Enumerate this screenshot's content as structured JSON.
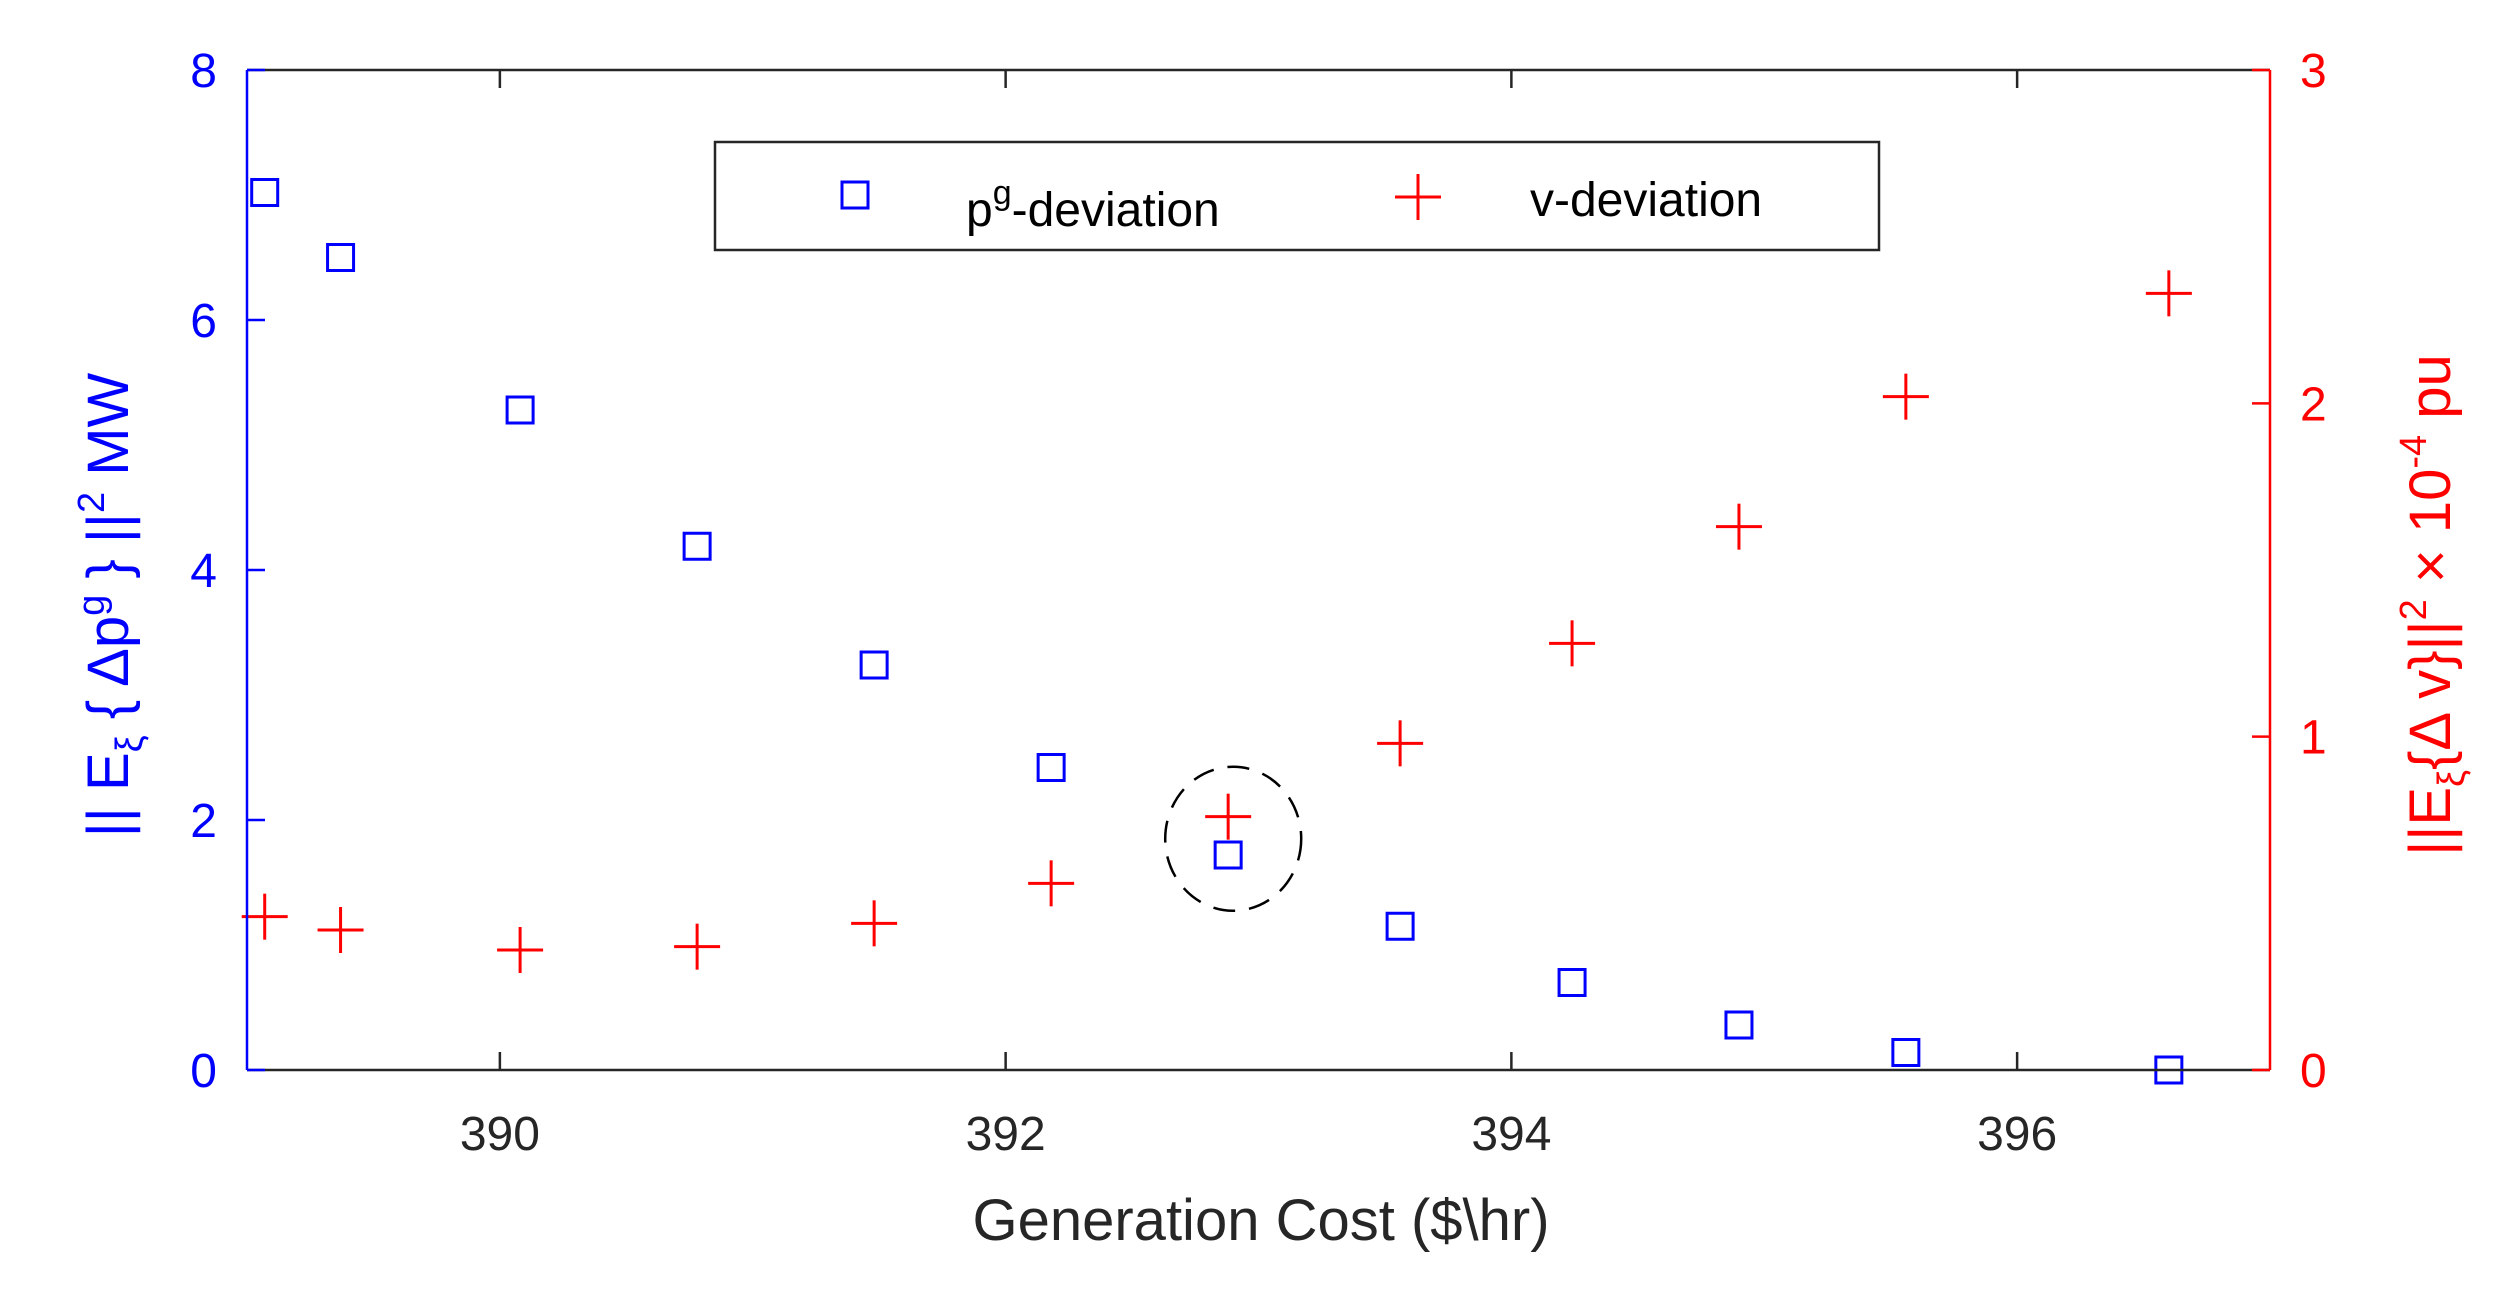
{
  "chart_data": {
    "type": "scatter",
    "title": "",
    "xlabel": "Generation Cost ($\\hr)",
    "ylabel_left": {
      "prefix": "|| E",
      "sub": "ξ",
      "mid": " { Δp",
      "sup1": "g",
      "mid2": " } ||",
      "sup2": "2",
      "suffix": "  MW"
    },
    "ylabel_right": {
      "prefix": "||E",
      "sub": "ξ",
      "mid": "{Δ v}||",
      "sup1": "2",
      "mid2": " × 10",
      "sup2": "-4",
      "suffix": " pu"
    },
    "xlim": [
      389,
      397
    ],
    "ylim_left": [
      0,
      8
    ],
    "ylim_right": [
      0,
      3
    ],
    "xticks": [
      390,
      392,
      394,
      396
    ],
    "yticks_left": [
      0,
      2,
      4,
      6,
      8
    ],
    "yticks_right": [
      0,
      1,
      2,
      3
    ],
    "colors": {
      "left": "#0000ff",
      "right": "#ff0000",
      "axis": "#262626"
    },
    "series": [
      {
        "name": "p^g-deviation",
        "axis": "left",
        "marker": "square",
        "color": "#0000ff",
        "x": [
          389.07,
          389.37,
          390.08,
          390.78,
          391.48,
          392.18,
          392.88,
          393.56,
          394.24,
          394.9,
          395.56,
          396.6
        ],
        "y": [
          7.02,
          6.5,
          5.28,
          4.19,
          3.24,
          2.42,
          1.72,
          1.15,
          0.7,
          0.36,
          0.14,
          0.0
        ]
      },
      {
        "name": "v-deviation",
        "axis": "right",
        "marker": "plus",
        "color": "#ff0000",
        "x": [
          389.07,
          389.37,
          390.08,
          390.78,
          391.48,
          392.18,
          392.88,
          393.56,
          394.24,
          394.9,
          395.56,
          396.6
        ],
        "y": [
          0.46,
          0.42,
          0.36,
          0.37,
          0.44,
          0.56,
          0.76,
          0.98,
          1.28,
          1.63,
          2.02,
          2.33
        ]
      }
    ],
    "legend": {
      "location": "top",
      "entries": [
        {
          "base": "p",
          "sup": "g",
          "rest": "-deviation"
        },
        {
          "base": "v-deviation",
          "sup": "",
          "rest": ""
        }
      ]
    },
    "annotation": {
      "type": "dashed-circle",
      "x": 392.9,
      "y_left": 1.85,
      "note": "highlighted point"
    }
  }
}
